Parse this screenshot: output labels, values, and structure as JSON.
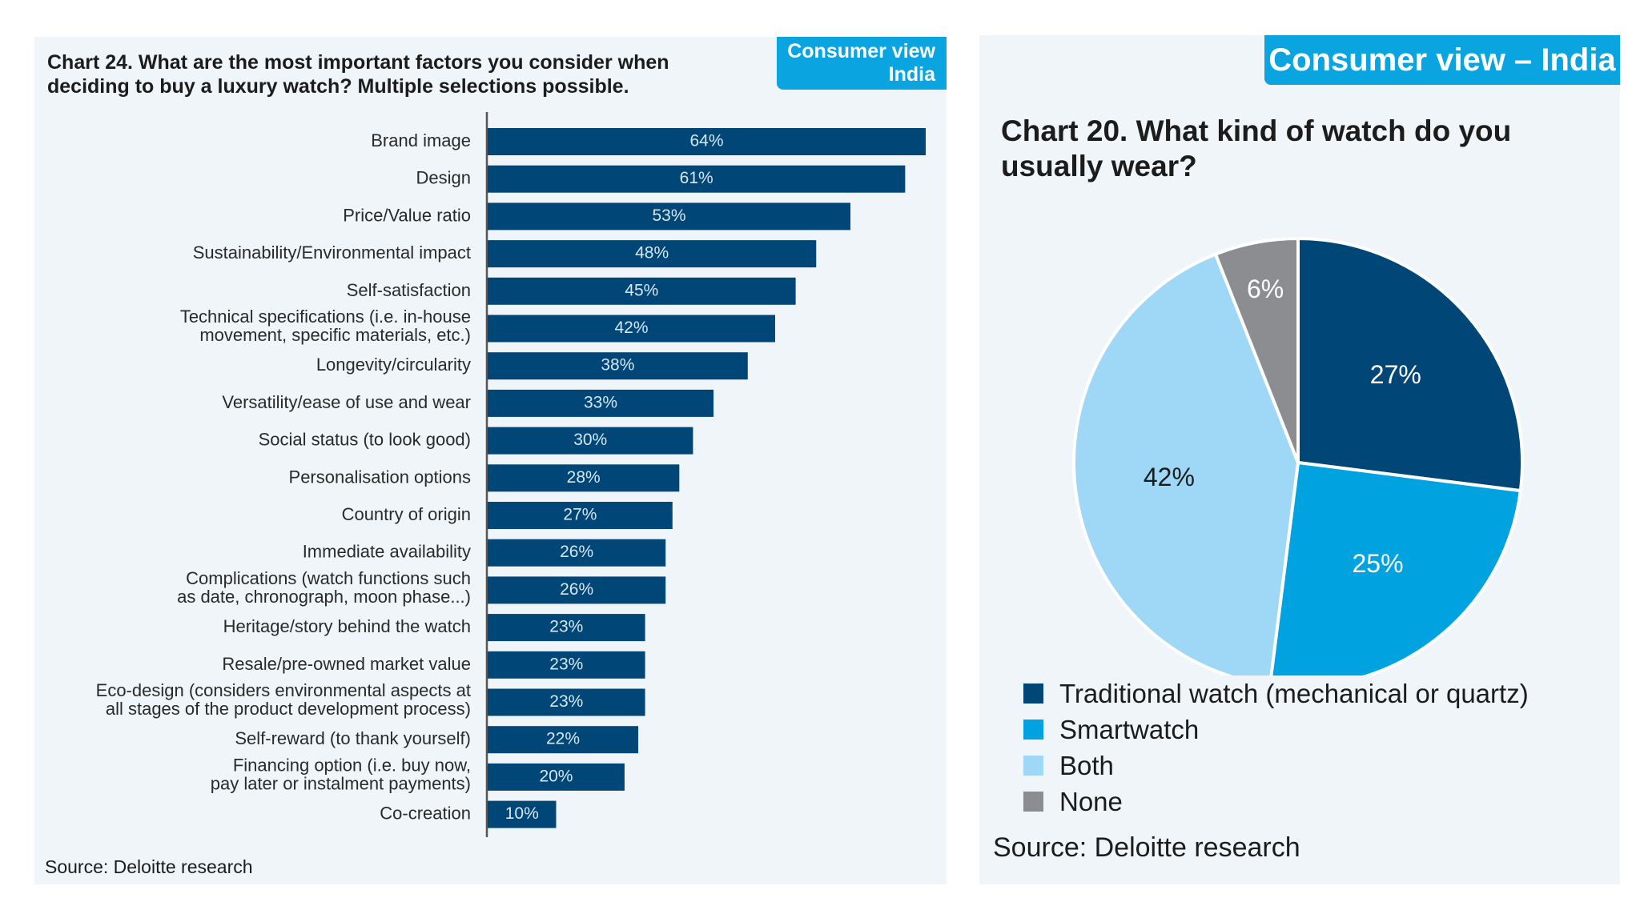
{
  "left": {
    "badge_line1": "Consumer view",
    "badge_line2": "India",
    "title": "Chart 24. What are the most important factors you consider when\ndeciding to buy a luxury watch? Multiple selections possible.",
    "source": "Source: Deloitte research"
  },
  "right": {
    "badge": "Consumer view – India",
    "title": "Chart 20. What kind of watch do you\nusually wear?",
    "source": "Source: Deloitte research"
  },
  "colors": {
    "bar": "#004677",
    "traditional": "#004677",
    "smartwatch": "#00a3e0",
    "both": "#9ed8f6",
    "none": "#8b8d91"
  },
  "chart_data": [
    {
      "type": "bar",
      "orientation": "horizontal",
      "title": "Chart 24. What are the most important factors you consider when deciding to buy a luxury watch? Multiple selections possible.",
      "categories": [
        "Brand image",
        "Design",
        "Price/Value ratio",
        "Sustainability/Environmental impact",
        "Self-satisfaction",
        "Technical specifications (i.e. in-house\nmovement, specific materials, etc.)",
        "Longevity/circularity",
        "Versatility/ease of use and wear",
        "Social status (to look good)",
        "Personalisation options",
        "Country of origin",
        "Immediate availability",
        "Complications (watch functions such\nas date, chronograph, moon phase...)",
        "Heritage/story behind the watch",
        "Resale/pre-owned market value",
        "Eco-design (considers environmental aspects at\nall stages of the product development process)",
        "Self-reward (to thank yourself)",
        "Financing option (i.e. buy now,\npay later or instalment payments)",
        "Co-creation"
      ],
      "values": [
        64,
        61,
        53,
        48,
        45,
        42,
        38,
        33,
        30,
        28,
        27,
        26,
        26,
        23,
        23,
        23,
        22,
        20,
        10
      ],
      "labels": [
        "64%",
        "61%",
        "53%",
        "48%",
        "45%",
        "42%",
        "38%",
        "33%",
        "30%",
        "28%",
        "27%",
        "26%",
        "26%",
        "23%",
        "23%",
        "23%",
        "22%",
        "20%",
        "10%"
      ],
      "unit": "%",
      "xlim": [
        0,
        64
      ]
    },
    {
      "type": "pie",
      "title": "Chart 20. What kind of watch do you usually wear?",
      "slices": [
        {
          "name": "Traditional watch (mechanical or quartz)",
          "value": 27,
          "label": "27%",
          "color_key": "traditional"
        },
        {
          "name": "Smartwatch",
          "value": 25,
          "label": "25%",
          "color_key": "smartwatch"
        },
        {
          "name": "Both",
          "value": 42,
          "label": "42%",
          "color_key": "both"
        },
        {
          "name": "None",
          "value": 6,
          "label": "6%",
          "color_key": "none"
        }
      ],
      "legend": "bottom"
    }
  ]
}
